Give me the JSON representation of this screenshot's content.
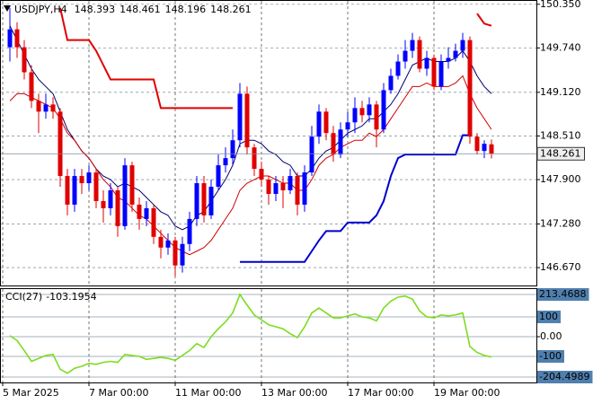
{
  "chart_data": [
    {
      "type": "candlestick",
      "title": "USDJPY,H4",
      "open": [
        149.75,
        150.0,
        149.75,
        149.4,
        149.0,
        148.85,
        148.95,
        148.85,
        147.95,
        147.55,
        147.95,
        147.85,
        148.0,
        147.6,
        147.5,
        147.75,
        147.25,
        148.1,
        147.55,
        147.35,
        147.5,
        147.1,
        146.95,
        147.05,
        146.7,
        147.0,
        147.35,
        147.85,
        147.4,
        147.8,
        148.1,
        148.2,
        148.45,
        149.1,
        148.35,
        148.05,
        147.9,
        147.7,
        147.85,
        147.75,
        147.95,
        147.55,
        148.0,
        148.5,
        148.85,
        148.55,
        148.25,
        148.6,
        148.7,
        148.9,
        148.8,
        148.95,
        148.6,
        149.15,
        149.35,
        149.55,
        149.7,
        149.85,
        149.45,
        149.6,
        149.2,
        149.55,
        149.6,
        149.7,
        149.85,
        148.5,
        148.3,
        148.393
      ],
      "high": [
        150.3,
        150.1,
        149.85,
        149.5,
        149.1,
        149.1,
        149.05,
        148.9,
        148.05,
        148.05,
        148.05,
        148.1,
        148.05,
        147.75,
        147.85,
        147.8,
        148.2,
        148.15,
        147.65,
        147.6,
        147.55,
        147.2,
        147.15,
        147.1,
        147.1,
        147.45,
        147.95,
        147.95,
        147.9,
        148.25,
        148.35,
        148.6,
        149.25,
        149.2,
        148.4,
        148.15,
        147.95,
        147.95,
        147.95,
        148.05,
        148.0,
        148.1,
        148.65,
        148.95,
        148.9,
        148.65,
        148.7,
        148.85,
        149.05,
        149.0,
        149.05,
        149.0,
        149.25,
        149.45,
        149.65,
        149.85,
        149.95,
        149.9,
        149.7,
        149.65,
        149.65,
        149.75,
        149.8,
        149.95,
        149.9,
        148.55,
        148.45,
        148.461
      ],
      "low": [
        149.55,
        149.6,
        149.3,
        148.9,
        148.55,
        148.75,
        148.75,
        147.8,
        147.4,
        147.45,
        147.7,
        147.75,
        147.5,
        147.3,
        147.4,
        147.1,
        147.2,
        147.45,
        147.2,
        147.25,
        147.0,
        146.8,
        146.85,
        146.55,
        146.6,
        146.9,
        147.25,
        147.3,
        147.35,
        147.75,
        148.0,
        148.1,
        148.35,
        148.25,
        147.95,
        147.8,
        147.55,
        147.6,
        147.5,
        147.7,
        147.4,
        147.45,
        147.95,
        148.4,
        148.45,
        148.15,
        148.2,
        148.5,
        148.55,
        148.7,
        148.7,
        148.35,
        148.55,
        149.1,
        149.3,
        149.45,
        149.6,
        149.4,
        149.35,
        149.15,
        149.15,
        149.45,
        149.55,
        149.6,
        148.4,
        148.25,
        148.2,
        148.196
      ],
      "close": [
        150.0,
        149.75,
        149.4,
        149.0,
        148.85,
        148.95,
        148.85,
        147.95,
        147.55,
        147.95,
        147.85,
        148.0,
        147.6,
        147.5,
        147.75,
        147.25,
        148.1,
        147.55,
        147.35,
        147.5,
        147.1,
        146.95,
        147.05,
        146.7,
        147.0,
        147.35,
        147.85,
        147.4,
        147.8,
        148.1,
        148.2,
        148.45,
        149.1,
        148.35,
        148.05,
        147.9,
        147.7,
        147.85,
        147.75,
        147.95,
        147.55,
        148.0,
        148.5,
        148.85,
        148.55,
        148.25,
        148.6,
        148.7,
        148.9,
        148.8,
        148.95,
        148.6,
        149.15,
        149.35,
        149.55,
        149.7,
        149.85,
        149.45,
        149.6,
        149.2,
        149.55,
        149.6,
        149.7,
        149.85,
        148.5,
        148.3,
        148.4,
        148.261
      ],
      "up_color": "#0000ff",
      "down_color": "#e00000",
      "series": [
        {
          "color": "#00006e",
          "width": 1,
          "values": [
            150.05,
            149.85,
            149.65,
            149.45,
            149.3,
            149.2,
            149.1,
            148.85,
            148.6,
            148.45,
            148.3,
            148.2,
            148.05,
            147.95,
            147.9,
            147.8,
            147.85,
            147.8,
            147.75,
            147.65,
            147.55,
            147.45,
            147.4,
            147.25,
            147.2,
            147.25,
            147.4,
            147.45,
            147.6,
            147.75,
            147.9,
            148.1,
            148.4,
            148.45,
            148.45,
            148.4,
            148.3,
            148.25,
            148.15,
            148.1,
            147.95,
            147.95,
            148.05,
            148.2,
            148.3,
            148.35,
            148.45,
            148.55,
            148.6,
            148.65,
            148.75,
            148.75,
            148.85,
            148.95,
            149.1,
            149.3,
            149.5,
            149.55,
            149.6,
            149.55,
            149.55,
            149.55,
            149.6,
            149.7,
            149.55,
            149.35,
            149.2,
            149.1
          ]
        },
        {
          "color": "#d00000",
          "width": 1,
          "values": [
            149.0,
            149.1,
            149.1,
            149.05,
            149.0,
            148.95,
            148.9,
            148.75,
            148.55,
            148.45,
            148.3,
            148.2,
            148.05,
            147.9,
            147.8,
            147.65,
            147.6,
            147.5,
            147.4,
            147.35,
            147.25,
            147.15,
            147.05,
            146.95,
            146.9,
            146.85,
            146.9,
            146.95,
            147.05,
            147.2,
            147.35,
            147.5,
            147.75,
            147.85,
            147.9,
            147.95,
            147.95,
            147.9,
            147.85,
            147.85,
            147.75,
            147.75,
            147.9,
            148.1,
            148.2,
            148.25,
            148.35,
            148.4,
            148.45,
            148.45,
            148.55,
            148.5,
            148.6,
            148.75,
            148.9,
            149.05,
            149.2,
            149.2,
            149.25,
            149.2,
            149.2,
            149.2,
            149.25,
            149.35,
            149.1,
            148.9,
            148.75,
            148.6
          ]
        },
        {
          "color": "#e00000",
          "width": 2,
          "values": [
            null,
            null,
            null,
            null,
            null,
            null,
            null,
            150.3,
            149.85,
            149.85,
            149.85,
            149.85,
            149.7,
            149.5,
            149.3,
            149.3,
            149.3,
            149.3,
            149.3,
            149.3,
            149.3,
            148.9,
            148.9,
            148.9,
            148.9,
            148.9,
            148.9,
            148.9,
            148.9,
            148.9,
            148.9,
            148.9,
            null,
            null,
            null,
            null,
            null,
            null,
            null,
            null,
            null,
            null,
            null,
            null,
            null,
            null,
            null,
            null,
            null,
            null,
            null,
            null,
            null,
            null,
            null,
            null,
            null,
            null,
            null,
            null,
            null,
            null,
            null,
            null,
            null,
            150.22,
            150.08,
            150.05
          ]
        },
        {
          "color": "#0000d0",
          "width": 2,
          "values": [
            null,
            null,
            null,
            null,
            null,
            null,
            null,
            null,
            null,
            null,
            null,
            null,
            null,
            null,
            null,
            null,
            null,
            null,
            null,
            null,
            null,
            null,
            null,
            null,
            null,
            null,
            null,
            null,
            null,
            null,
            null,
            null,
            146.75,
            146.75,
            146.75,
            146.75,
            146.75,
            146.75,
            146.75,
            146.75,
            146.75,
            146.75,
            146.9,
            147.05,
            147.18,
            147.18,
            147.18,
            147.3,
            147.3,
            147.3,
            147.3,
            147.4,
            147.6,
            147.95,
            148.2,
            148.25,
            148.25,
            148.25,
            148.25,
            148.25,
            148.25,
            148.25,
            148.25,
            148.52,
            148.52,
            null,
            null,
            null
          ]
        }
      ],
      "ylim": [
        146.42,
        150.41
      ],
      "yticks": [
        {
          "value": 150.35,
          "label": "150.350"
        },
        {
          "value": 149.74,
          "label": "149.740"
        },
        {
          "value": 149.12,
          "label": "149.120"
        },
        {
          "value": 148.51,
          "label": "148.510"
        },
        {
          "value": 147.9,
          "label": "147.900"
        },
        {
          "value": 147.28,
          "label": "147.280"
        },
        {
          "value": 146.67,
          "label": "146.670"
        }
      ],
      "xticks": [
        {
          "value": -1,
          "label": "5 Mar 2025"
        },
        {
          "value": 11,
          "label": "7 Mar 00:00"
        },
        {
          "value": 23,
          "label": "11 Mar 00:00"
        },
        {
          "value": 35,
          "label": "13 Mar 00:00"
        },
        {
          "value": 47,
          "label": "17 Mar 00:00"
        },
        {
          "value": 59,
          "label": "19 Mar 00:00"
        }
      ],
      "grid": true
    },
    {
      "type": "line",
      "title": "CCI(27)",
      "color": "#7ddc1f",
      "values": [
        5,
        -20,
        -70,
        -125,
        -110,
        -95,
        -90,
        -165,
        -185,
        -160,
        -150,
        -135,
        -140,
        -130,
        -125,
        -130,
        -90,
        -95,
        -100,
        -115,
        -110,
        -105,
        -110,
        -120,
        -95,
        -70,
        -35,
        -55,
        0,
        40,
        75,
        120,
        213.4688,
        160,
        110,
        85,
        60,
        50,
        40,
        15,
        -5,
        50,
        120,
        145,
        120,
        95,
        95,
        105,
        115,
        100,
        95,
        80,
        145,
        180,
        200,
        205,
        190,
        130,
        100,
        95,
        110,
        105,
        110,
        120,
        -50,
        -80,
        -95,
        -103.1954
      ],
      "ylim": [
        -204.4989,
        213.4688
      ],
      "yticks": [
        213.4688,
        100,
        {
          "value": 0,
          "label": "0.00"
        },
        -100,
        -204.4989
      ],
      "grid": true
    }
  ]
}
